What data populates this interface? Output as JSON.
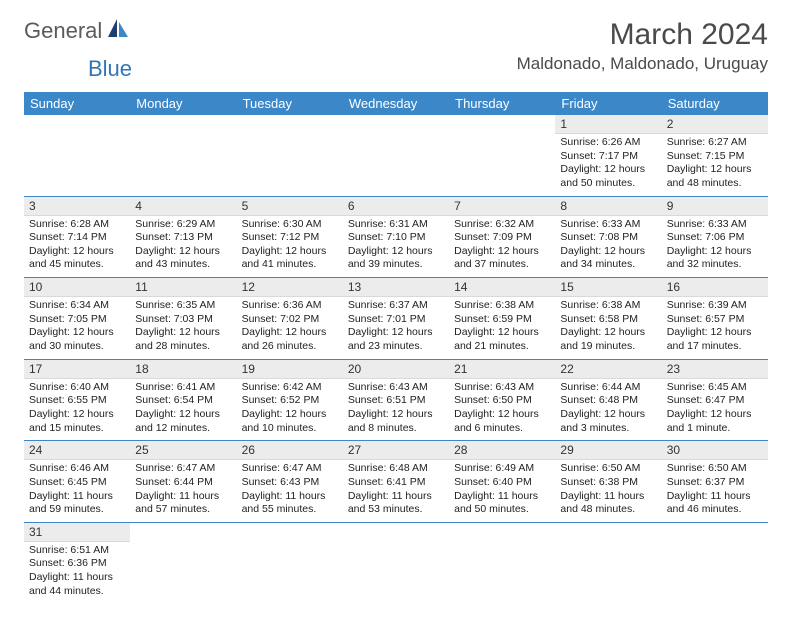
{
  "logo": {
    "text1": "General",
    "text2": "Blue"
  },
  "title": {
    "month": "March 2024",
    "location": "Maldonado, Maldonado, Uruguay"
  },
  "daysOfWeek": [
    "Sunday",
    "Monday",
    "Tuesday",
    "Wednesday",
    "Thursday",
    "Friday",
    "Saturday"
  ],
  "colors": {
    "headerBg": "#3b87c8",
    "headerText": "#ffffff",
    "dayBg": "#ececec",
    "ruleColor": "#3b87c8",
    "logoGray": "#5b5b5b",
    "logoBlue": "#2f77b8"
  },
  "rows": [
    [
      null,
      null,
      null,
      null,
      null,
      {
        "n": "1",
        "sr": "6:26 AM",
        "ss": "7:17 PM",
        "dl": "12 hours and 50 minutes."
      },
      {
        "n": "2",
        "sr": "6:27 AM",
        "ss": "7:15 PM",
        "dl": "12 hours and 48 minutes."
      }
    ],
    [
      {
        "n": "3",
        "sr": "6:28 AM",
        "ss": "7:14 PM",
        "dl": "12 hours and 45 minutes."
      },
      {
        "n": "4",
        "sr": "6:29 AM",
        "ss": "7:13 PM",
        "dl": "12 hours and 43 minutes."
      },
      {
        "n": "5",
        "sr": "6:30 AM",
        "ss": "7:12 PM",
        "dl": "12 hours and 41 minutes."
      },
      {
        "n": "6",
        "sr": "6:31 AM",
        "ss": "7:10 PM",
        "dl": "12 hours and 39 minutes."
      },
      {
        "n": "7",
        "sr": "6:32 AM",
        "ss": "7:09 PM",
        "dl": "12 hours and 37 minutes."
      },
      {
        "n": "8",
        "sr": "6:33 AM",
        "ss": "7:08 PM",
        "dl": "12 hours and 34 minutes."
      },
      {
        "n": "9",
        "sr": "6:33 AM",
        "ss": "7:06 PM",
        "dl": "12 hours and 32 minutes."
      }
    ],
    [
      {
        "n": "10",
        "sr": "6:34 AM",
        "ss": "7:05 PM",
        "dl": "12 hours and 30 minutes."
      },
      {
        "n": "11",
        "sr": "6:35 AM",
        "ss": "7:03 PM",
        "dl": "12 hours and 28 minutes."
      },
      {
        "n": "12",
        "sr": "6:36 AM",
        "ss": "7:02 PM",
        "dl": "12 hours and 26 minutes."
      },
      {
        "n": "13",
        "sr": "6:37 AM",
        "ss": "7:01 PM",
        "dl": "12 hours and 23 minutes."
      },
      {
        "n": "14",
        "sr": "6:38 AM",
        "ss": "6:59 PM",
        "dl": "12 hours and 21 minutes."
      },
      {
        "n": "15",
        "sr": "6:38 AM",
        "ss": "6:58 PM",
        "dl": "12 hours and 19 minutes."
      },
      {
        "n": "16",
        "sr": "6:39 AM",
        "ss": "6:57 PM",
        "dl": "12 hours and 17 minutes."
      }
    ],
    [
      {
        "n": "17",
        "sr": "6:40 AM",
        "ss": "6:55 PM",
        "dl": "12 hours and 15 minutes."
      },
      {
        "n": "18",
        "sr": "6:41 AM",
        "ss": "6:54 PM",
        "dl": "12 hours and 12 minutes."
      },
      {
        "n": "19",
        "sr": "6:42 AM",
        "ss": "6:52 PM",
        "dl": "12 hours and 10 minutes."
      },
      {
        "n": "20",
        "sr": "6:43 AM",
        "ss": "6:51 PM",
        "dl": "12 hours and 8 minutes."
      },
      {
        "n": "21",
        "sr": "6:43 AM",
        "ss": "6:50 PM",
        "dl": "12 hours and 6 minutes."
      },
      {
        "n": "22",
        "sr": "6:44 AM",
        "ss": "6:48 PM",
        "dl": "12 hours and 3 minutes."
      },
      {
        "n": "23",
        "sr": "6:45 AM",
        "ss": "6:47 PM",
        "dl": "12 hours and 1 minute."
      }
    ],
    [
      {
        "n": "24",
        "sr": "6:46 AM",
        "ss": "6:45 PM",
        "dl": "11 hours and 59 minutes."
      },
      {
        "n": "25",
        "sr": "6:47 AM",
        "ss": "6:44 PM",
        "dl": "11 hours and 57 minutes."
      },
      {
        "n": "26",
        "sr": "6:47 AM",
        "ss": "6:43 PM",
        "dl": "11 hours and 55 minutes."
      },
      {
        "n": "27",
        "sr": "6:48 AM",
        "ss": "6:41 PM",
        "dl": "11 hours and 53 minutes."
      },
      {
        "n": "28",
        "sr": "6:49 AM",
        "ss": "6:40 PM",
        "dl": "11 hours and 50 minutes."
      },
      {
        "n": "29",
        "sr": "6:50 AM",
        "ss": "6:38 PM",
        "dl": "11 hours and 48 minutes."
      },
      {
        "n": "30",
        "sr": "6:50 AM",
        "ss": "6:37 PM",
        "dl": "11 hours and 46 minutes."
      }
    ],
    [
      {
        "n": "31",
        "sr": "6:51 AM",
        "ss": "6:36 PM",
        "dl": "11 hours and 44 minutes."
      },
      null,
      null,
      null,
      null,
      null,
      null
    ]
  ],
  "labels": {
    "sunrise": "Sunrise:",
    "sunset": "Sunset:",
    "daylight": "Daylight:"
  }
}
